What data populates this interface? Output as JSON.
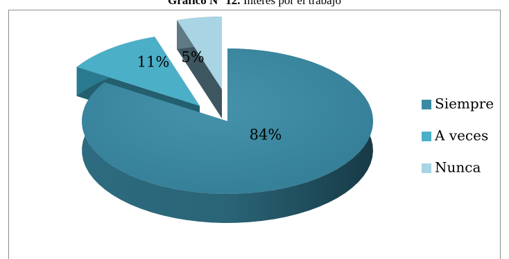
{
  "chart_data": {
    "type": "pie",
    "title_bold": "Gráfico N° 12.",
    "title_rest": "Interés por el trabajo",
    "categories": [
      "Siempre",
      "A veces",
      "Nunca"
    ],
    "values": [
      84,
      11,
      5
    ],
    "labels": [
      "84%",
      "11%",
      "5%"
    ],
    "colors": [
      "#3a8aa3",
      "#4cafc8",
      "#a9d4e3"
    ],
    "legend_position": "right"
  }
}
